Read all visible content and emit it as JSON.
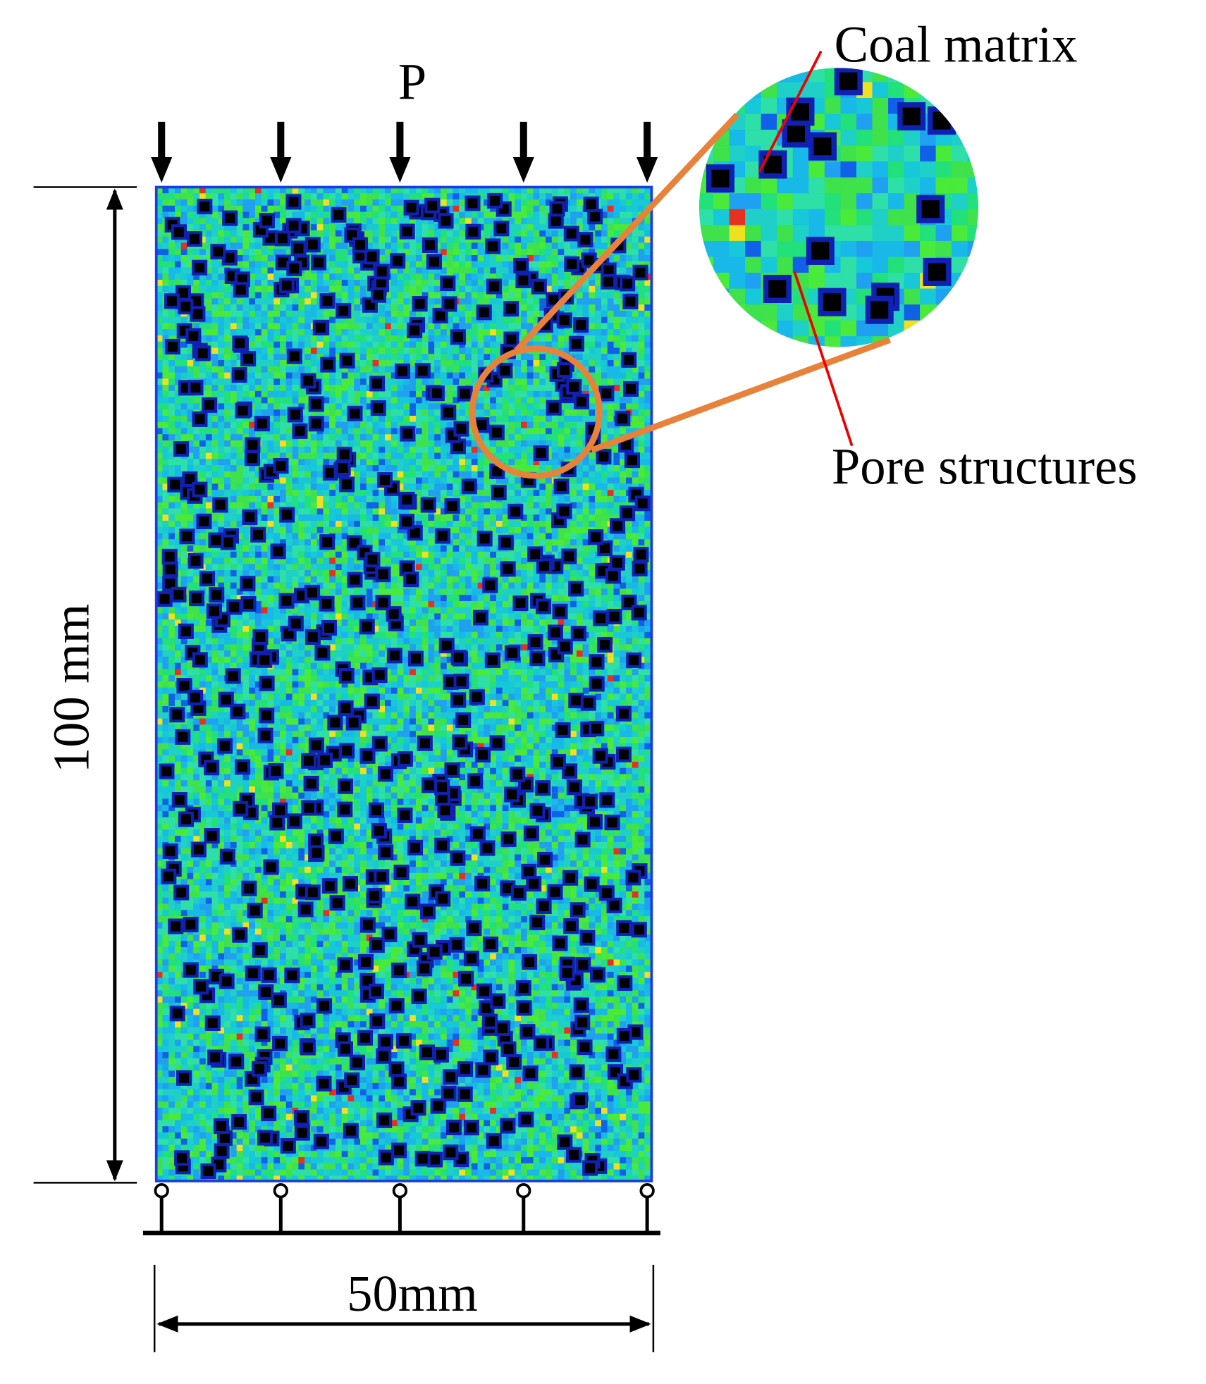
{
  "load_label": "P",
  "callouts": {
    "matrix": "Coal matrix",
    "pores": "Pore structures"
  },
  "dimensions": {
    "height": "100 mm",
    "width": "50mm"
  }
}
